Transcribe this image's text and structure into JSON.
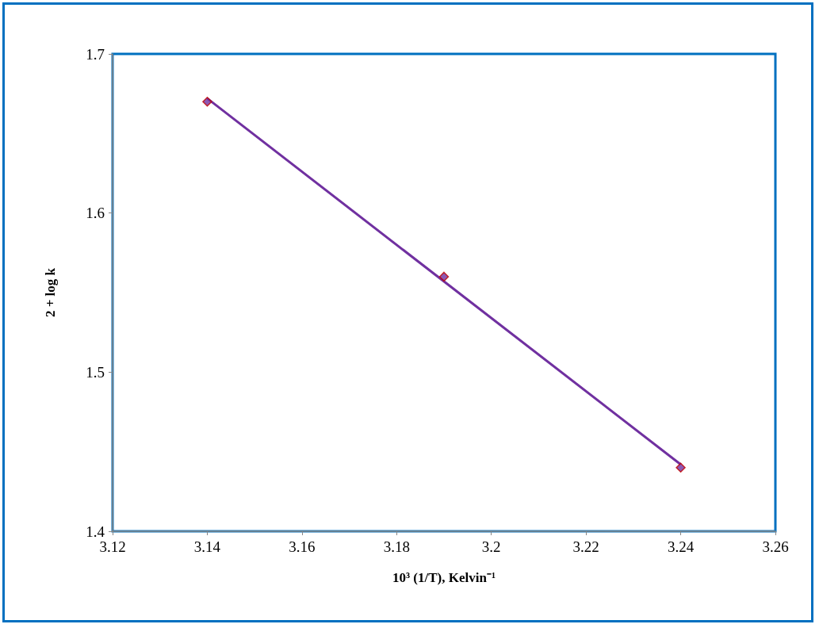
{
  "chart_data": {
    "type": "scatter",
    "xlabel": "10³ (1/T), Kelvin⁻¹",
    "ylabel": "2 + log k",
    "series": [
      {
        "color": "#7030a0",
        "marker": "diamond",
        "x": [
          3.14,
          3.19,
          3.24
        ],
        "values": [
          1.67,
          1.56,
          1.44
        ]
      },
      {
        "type": "line",
        "color": "#7030a0",
        "marker": "none",
        "x": [
          3.14,
          3.24
        ],
        "values": [
          1.672,
          1.442
        ]
      }
    ],
    "xlim": [
      3.12,
      3.26
    ],
    "xticks": [
      3.12,
      3.14,
      3.16,
      3.18,
      3.2,
      3.22,
      3.24,
      3.26
    ],
    "ylim": [
      1.4,
      1.7
    ],
    "yticks": [
      1.4,
      1.5,
      1.6,
      1.7
    ],
    "grid": false
  }
}
